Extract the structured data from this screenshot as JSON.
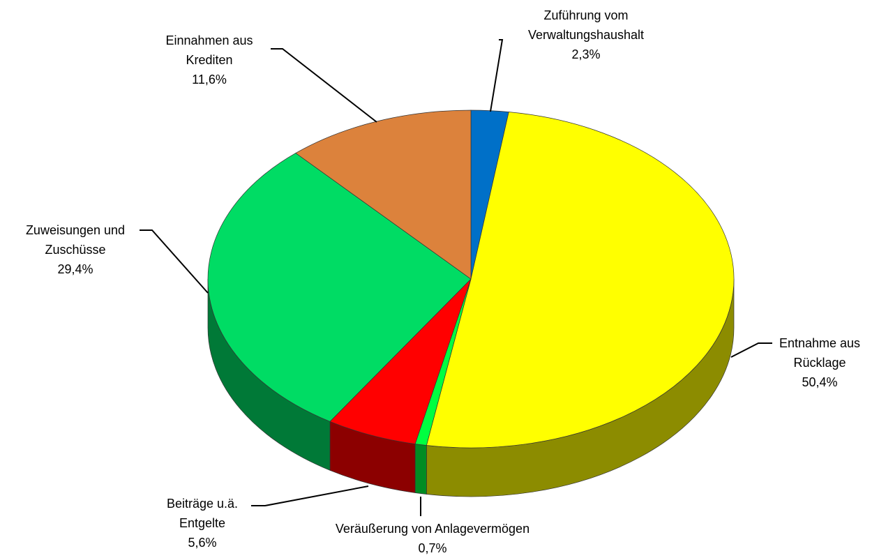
{
  "chart_data": {
    "type": "pie",
    "categories": [
      "Zuführung vom Verwaltungshaushalt",
      "Entnahme aus Rücklage",
      "Veräußerung von Anlagevermögen",
      "Beiträge u.ä. Entgelte",
      "Zuweisungen und Zuschüsse",
      "Einnahmen aus Krediten"
    ],
    "values": [
      2.3,
      50.4,
      0.7,
      5.6,
      29.4,
      11.6
    ],
    "value_labels": [
      "2,3%",
      "50,4%",
      "0,7%",
      "5,6%",
      "29,4%",
      "11,6%"
    ],
    "colors": [
      "#0070c8",
      "#ffff00",
      "#00ff40",
      "#ff0000",
      "#00dc64",
      "#dc823c"
    ]
  }
}
